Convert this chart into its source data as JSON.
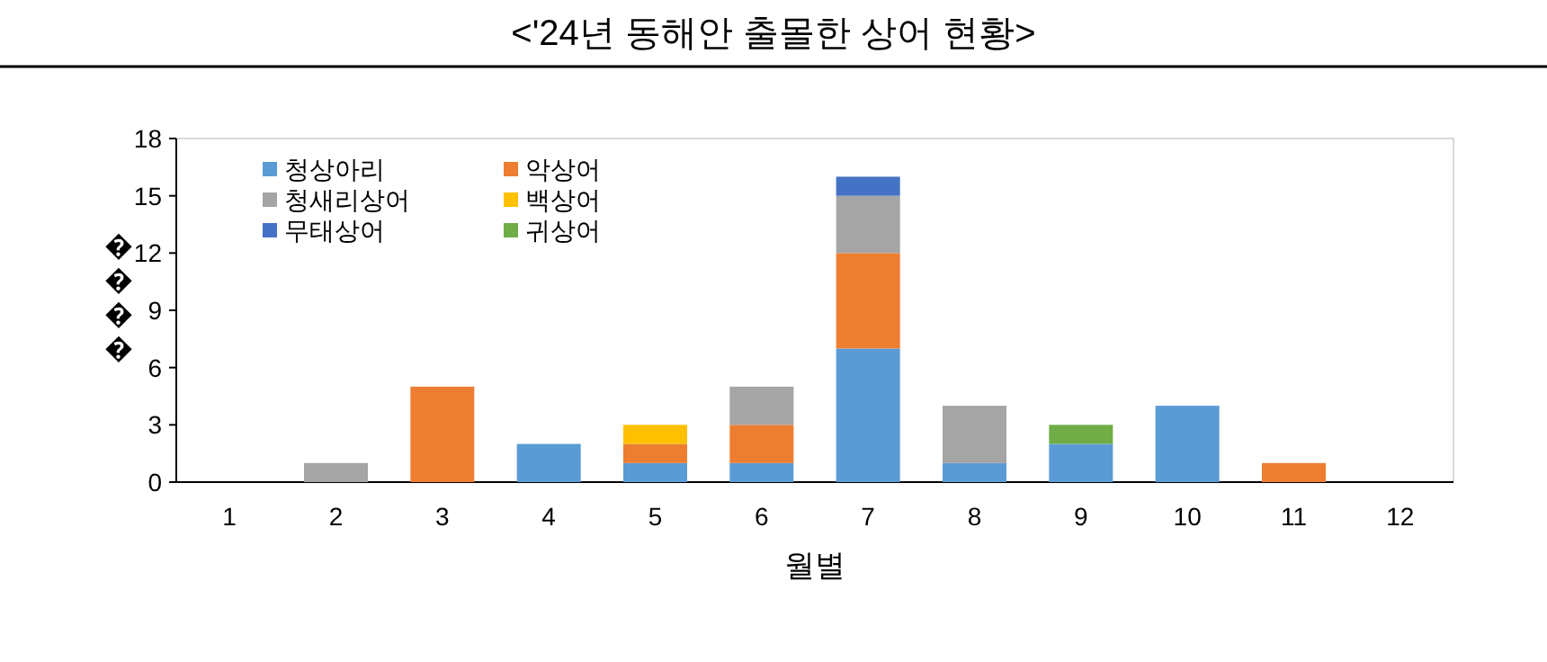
{
  "chart_data": {
    "type": "bar",
    "title": "<'24년 동해안 출몰한 상어 현황>",
    "xlabel": "월별",
    "ylabel": "����",
    "categories": [
      "1",
      "2",
      "3",
      "4",
      "5",
      "6",
      "7",
      "8",
      "9",
      "10",
      "11",
      "12"
    ],
    "stacked": true,
    "ylim": [
      0,
      18
    ],
    "yticks": [
      0,
      3,
      6,
      9,
      12,
      15,
      18
    ],
    "grid": false,
    "legend": "top left",
    "series": [
      {
        "name": "청상아리",
        "color": "#5b9bd5",
        "values": [
          0,
          0,
          0,
          2,
          1,
          1,
          7,
          1,
          2,
          4,
          0,
          0
        ]
      },
      {
        "name": "악상어",
        "color": "#ed7d31",
        "values": [
          0,
          0,
          5,
          0,
          1,
          2,
          5,
          0,
          0,
          0,
          1,
          0
        ]
      },
      {
        "name": "청새리상어",
        "color": "#a5a5a5",
        "values": [
          0,
          1,
          0,
          0,
          0,
          2,
          3,
          3,
          0,
          0,
          0,
          0
        ]
      },
      {
        "name": "백상어",
        "color": "#ffc000",
        "values": [
          0,
          0,
          0,
          0,
          1,
          0,
          0,
          0,
          0,
          0,
          0,
          0
        ]
      },
      {
        "name": "무태상어",
        "color": "#4472c4",
        "values": [
          0,
          0,
          0,
          0,
          0,
          0,
          1,
          0,
          0,
          0,
          0,
          0
        ]
      },
      {
        "name": "귀상어",
        "color": "#70ad47",
        "values": [
          0,
          0,
          0,
          0,
          0,
          0,
          0,
          0,
          1,
          0,
          0,
          0
        ]
      }
    ]
  }
}
